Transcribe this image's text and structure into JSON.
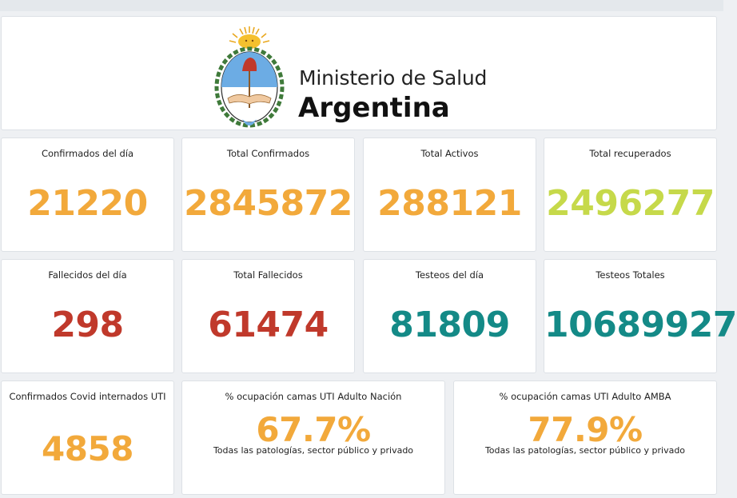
{
  "header": {
    "ministry": "Ministerio de Salud",
    "country": "Argentina"
  },
  "colors": {
    "orange": "#f2a93b",
    "lime": "#c6d94a",
    "red": "#c0392b",
    "teal": "#148a87"
  },
  "stats": {
    "confirmados_dia": {
      "title": "Confirmados del día",
      "value": "21220"
    },
    "total_confirmados": {
      "title": "Total Confirmados",
      "value": "2845872"
    },
    "total_activos": {
      "title": "Total Activos",
      "value": "288121"
    },
    "total_recuperados": {
      "title": "Total recuperados",
      "value": "2496277"
    },
    "fallecidos_dia": {
      "title": "Fallecidos del día",
      "value": "298"
    },
    "total_fallecidos": {
      "title": "Total Fallecidos",
      "value": "61474"
    },
    "testeos_dia": {
      "title": "Testeos del día",
      "value": "81809"
    },
    "testeos_totales": {
      "title": "Testeos Totales",
      "value": "10689927"
    },
    "internados_uti": {
      "title": "Confirmados Covid internados UTI",
      "value": "4858"
    },
    "ocupacion_nacion": {
      "title": "% ocupación camas UTI Adulto Nación",
      "value": "67.7%",
      "subtitle": "Todas las patologías, sector público y privado"
    },
    "ocupacion_amba": {
      "title": "% ocupación camas UTI Adulto AMBA",
      "value": "77.9%",
      "subtitle": "Todas las patologías, sector público y privado"
    }
  }
}
